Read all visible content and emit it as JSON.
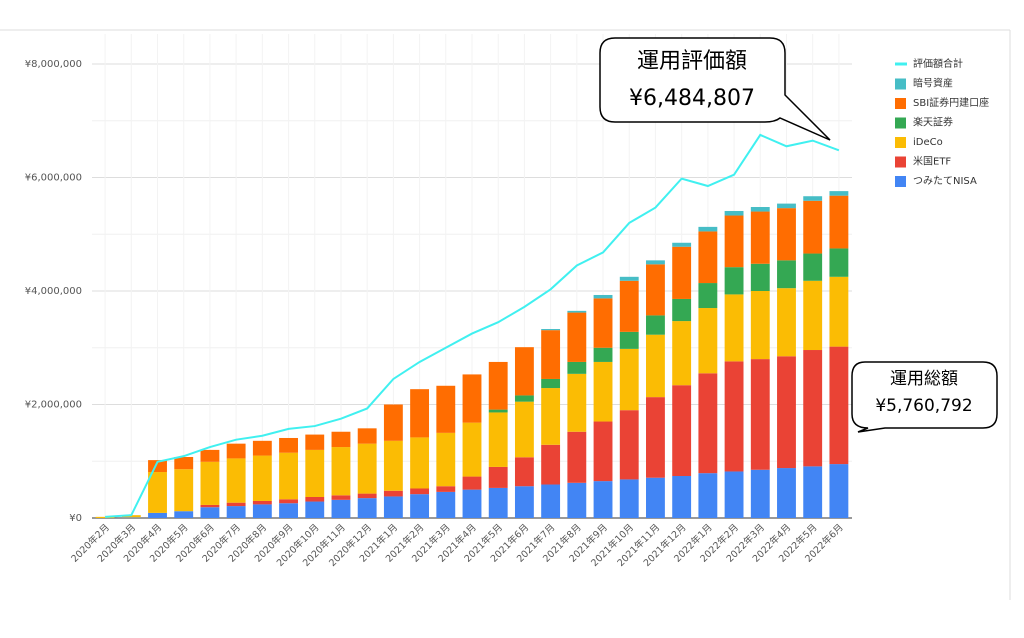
{
  "chart_data": {
    "type": "stacked-bar-line",
    "categories": [
      "2020年2月",
      "2020年3月",
      "2020年4月",
      "2020年5月",
      "2020年6月",
      "2020年7月",
      "2020年8月",
      "2020年9月",
      "2020年10月",
      "2020年11月",
      "2020年12月",
      "2021年1月",
      "2021年2月",
      "2021年3月",
      "2021年4月",
      "2021年5月",
      "2021年6月",
      "2021年7月",
      "2021年8月",
      "2021年9月",
      "2021年10月",
      "2021年11月",
      "2021年12月",
      "2022年1月",
      "2022年2月",
      "2022年3月",
      "2022年4月",
      "2022年5月",
      "2022年6月"
    ],
    "series": [
      {
        "name": "評価額合計",
        "color": "#40f0f0",
        "kind": "line",
        "values": [
          20000,
          50000,
          990000,
          1090000,
          1250000,
          1380000,
          1450000,
          1570000,
          1620000,
          1750000,
          1930000,
          2450000,
          2750000,
          3000000,
          3250000,
          3450000,
          3720000,
          4030000,
          4450000,
          4680000,
          5200000,
          5470000,
          5980000,
          5850000,
          6050000,
          6750000,
          6550000,
          6650000,
          6480000
        ]
      },
      {
        "name": "暗号資産",
        "color": "#46bdc6",
        "kind": "bar",
        "values": [
          0,
          0,
          0,
          0,
          0,
          0,
          0,
          0,
          0,
          0,
          0,
          0,
          0,
          0,
          0,
          0,
          0,
          20000,
          30000,
          60000,
          70000,
          70000,
          70000,
          80000,
          80000,
          80000,
          80000,
          80000,
          80000
        ]
      },
      {
        "name": "SBI証券円建口座",
        "color": "#ff6d01",
        "kind": "bar",
        "values": [
          0,
          0,
          210000,
          215000,
          210000,
          260000,
          260000,
          260000,
          270000,
          270000,
          270000,
          640000,
          850000,
          830000,
          850000,
          840000,
          850000,
          860000,
          870000,
          870000,
          900000,
          900000,
          920000,
          910000,
          910000,
          920000,
          920000,
          930000,
          930000
        ]
      },
      {
        "name": "楽天証券",
        "color": "#34a853",
        "kind": "bar",
        "values": [
          0,
          0,
          0,
          0,
          0,
          0,
          0,
          0,
          0,
          0,
          0,
          0,
          0,
          0,
          0,
          50000,
          110000,
          160000,
          210000,
          250000,
          300000,
          340000,
          390000,
          440000,
          480000,
          480000,
          490000,
          480000,
          500000
        ]
      },
      {
        "name": "iDeCo",
        "color": "#fbbc04",
        "kind": "bar",
        "values": [
          20000,
          40000,
          720000,
          740000,
          760000,
          780000,
          800000,
          820000,
          830000,
          850000,
          880000,
          880000,
          900000,
          940000,
          950000,
          960000,
          980000,
          1000000,
          1020000,
          1050000,
          1080000,
          1100000,
          1130000,
          1150000,
          1180000,
          1200000,
          1200000,
          1220000,
          1230000
        ]
      },
      {
        "name": "米国ETF",
        "color": "#ea4335",
        "kind": "bar",
        "values": [
          0,
          0,
          0,
          0,
          40000,
          60000,
          60000,
          70000,
          80000,
          80000,
          80000,
          100000,
          100000,
          100000,
          230000,
          370000,
          510000,
          700000,
          900000,
          1050000,
          1220000,
          1420000,
          1600000,
          1760000,
          1940000,
          1950000,
          1970000,
          2050000,
          2070000
        ]
      },
      {
        "name": "つみたてNISA",
        "color": "#4285f4",
        "kind": "bar",
        "values": [
          0,
          10000,
          90000,
          120000,
          190000,
          210000,
          240000,
          260000,
          290000,
          320000,
          350000,
          380000,
          420000,
          460000,
          500000,
          530000,
          560000,
          590000,
          620000,
          650000,
          680000,
          710000,
          740000,
          790000,
          820000,
          850000,
          880000,
          910000,
          950000
        ]
      }
    ],
    "ylim": [
      0,
      8000000
    ],
    "yticks": [
      {
        "value": 0,
        "label": "¥0"
      },
      {
        "value": 2000000,
        "label": "¥2,000,000"
      },
      {
        "value": 4000000,
        "label": "¥4,000,000"
      },
      {
        "value": 6000000,
        "label": "¥6,000,000"
      },
      {
        "value": 8000000,
        "label": "¥8,000,000"
      }
    ],
    "minor_grid": [
      1000000,
      3000000,
      5000000,
      7000000
    ],
    "grid": true,
    "legend": "right",
    "annotations": [
      {
        "title": "運用評価額",
        "text": "¥6,484,807"
      },
      {
        "title": "運用総額",
        "text": "¥5,760,792"
      }
    ]
  }
}
